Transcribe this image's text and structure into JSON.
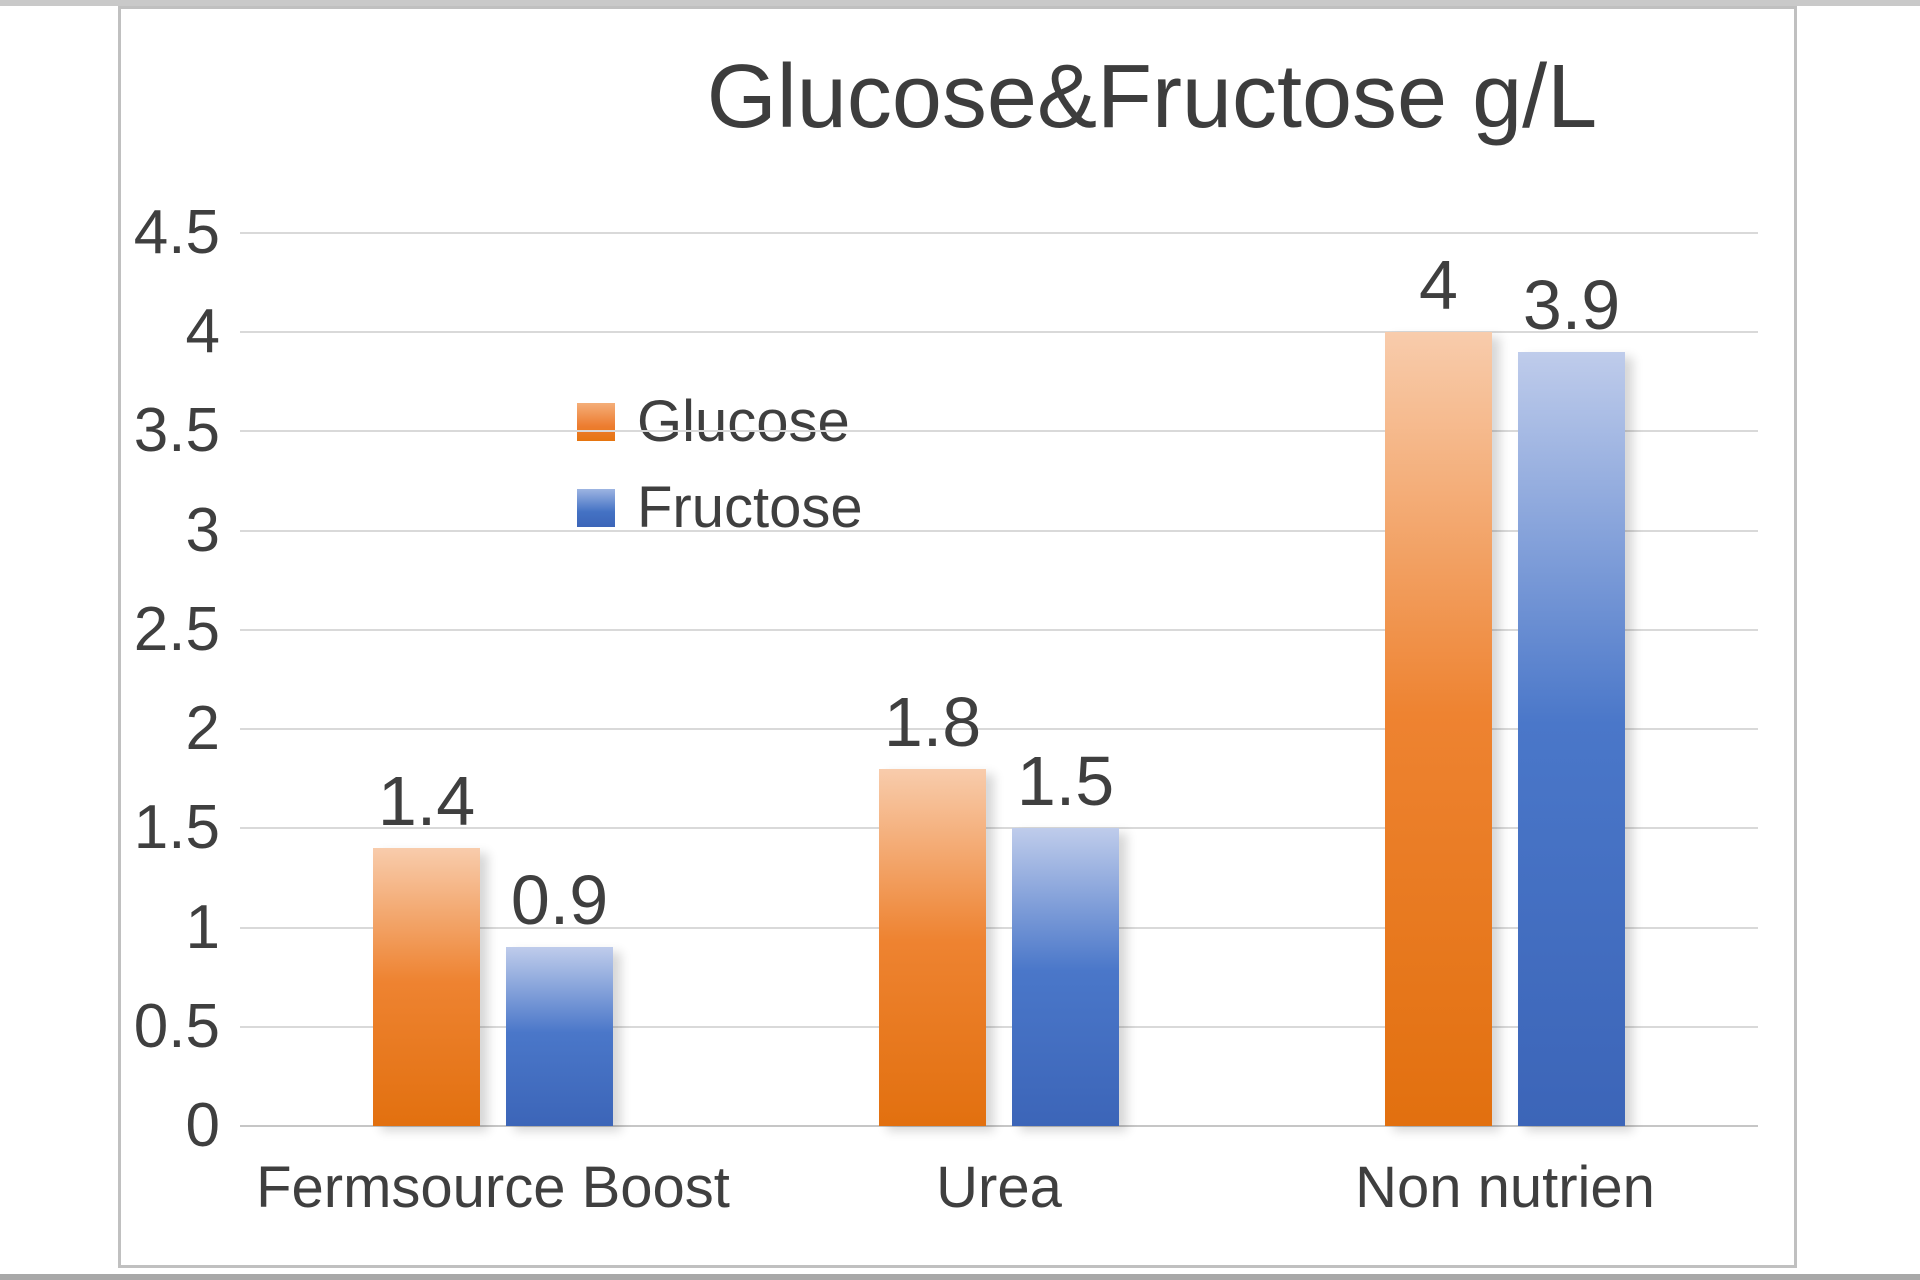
{
  "chart_data": {
    "type": "bar",
    "title": "Glucose&Fructose g/L",
    "categories": [
      "Fermsource Boost",
      "Urea",
      "Non nutrien"
    ],
    "series": [
      {
        "name": "Glucose",
        "values": [
          1.4,
          1.8,
          4
        ],
        "labels": [
          "1.4",
          "1.8",
          "4"
        ],
        "color": "#ED7D31"
      },
      {
        "name": "Fructose",
        "values": [
          0.9,
          1.5,
          3.9
        ],
        "labels": [
          "0.9",
          "1.5",
          "3.9"
        ],
        "color": "#4472C4"
      }
    ],
    "ylabel": "",
    "xlabel": "",
    "ylim": [
      0,
      4.5
    ],
    "ytick_step": 0.5,
    "ytick_labels_top_down": [
      "4.5",
      "4",
      "3.5",
      "3",
      "2.5",
      "2",
      "1.5",
      "1",
      "0.5",
      "0"
    ],
    "grid": true,
    "legend_position": "inside-upper-left",
    "gridline_color": "#D9D9D9",
    "text_color": "#3F3F3F"
  }
}
